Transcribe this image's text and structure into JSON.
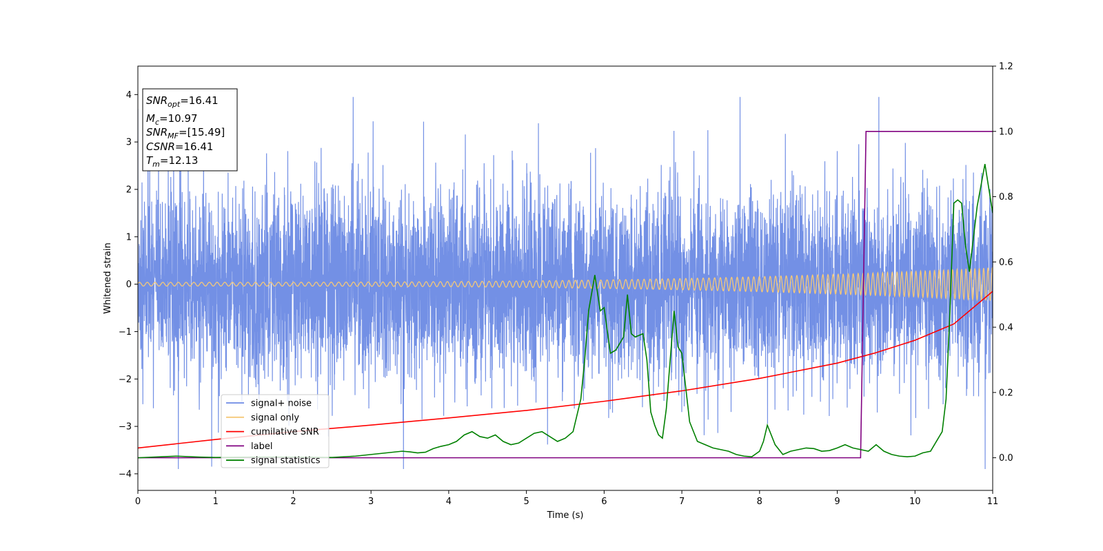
{
  "chart_data": {
    "type": "line",
    "title": "",
    "xlabel": "Time (s)",
    "ylabel": "Whitened strain",
    "xlim": [
      0,
      11
    ],
    "ylim": [
      -4.35,
      4.6
    ],
    "y2lim": [
      -0.1,
      1.2
    ],
    "grid": false,
    "xticks": [
      "0",
      "1",
      "2",
      "3",
      "4",
      "5",
      "6",
      "7",
      "8",
      "9",
      "10",
      "11"
    ],
    "yticks": [
      "−4",
      "−3",
      "−2",
      "−1",
      "0",
      "1",
      "2",
      "3",
      "4"
    ],
    "y2ticks": [
      "0.0",
      "0.2",
      "0.4",
      "0.6",
      "0.8",
      "1.0",
      "1.2"
    ],
    "legend_position": "lower-left",
    "info_box": {
      "snr_opt": {
        "sym": "SNR",
        "sub": "opt",
        "value": "=16.41"
      },
      "mc": {
        "sym": "M",
        "sub": "c",
        "value": "=10.97"
      },
      "snr_mf": {
        "sym": "SNR",
        "sub": "MF",
        "value": "=[15.49]"
      },
      "csnr": {
        "sym": "CSNR",
        "value": "=16.41"
      },
      "tm": {
        "sym": "T",
        "sub": "m",
        "value": "=12.13"
      }
    },
    "series": [
      {
        "name": "signal+ noise",
        "axis": "left",
        "color": "#6c8ae4",
        "kind": "noise",
        "sigma": 1.0,
        "samples": 6000
      },
      {
        "name": "signal only",
        "axis": "left",
        "color": "#f5c878",
        "kind": "chirp",
        "amplitude_start": 0.04,
        "amplitude_end": 0.35
      },
      {
        "name": "cumilative SNR",
        "axis": "right",
        "color": "#ff0000",
        "x": [
          0,
          1,
          2,
          3,
          4,
          5,
          6,
          7,
          8,
          9,
          9.5,
          10,
          10.5,
          11
        ],
        "y": [
          0.03,
          0.056,
          0.08,
          0.1,
          0.122,
          0.145,
          0.173,
          0.205,
          0.243,
          0.29,
          0.322,
          0.36,
          0.41,
          0.51
        ]
      },
      {
        "name": "label",
        "axis": "right",
        "color": "#800080",
        "x": [
          0,
          9.3,
          9.37,
          11
        ],
        "y": [
          0,
          0,
          1,
          1
        ]
      },
      {
        "name": "signal statistics",
        "axis": "right",
        "color": "#008000",
        "x": [
          0,
          0.3,
          0.5,
          0.8,
          1.0,
          1.5,
          2.0,
          2.5,
          2.8,
          3.0,
          3.2,
          3.4,
          3.5,
          3.6,
          3.7,
          3.8,
          3.9,
          4.0,
          4.1,
          4.2,
          4.3,
          4.4,
          4.5,
          4.6,
          4.7,
          4.8,
          4.9,
          5.0,
          5.1,
          5.2,
          5.3,
          5.4,
          5.5,
          5.6,
          5.7,
          5.75,
          5.8,
          5.88,
          5.95,
          6.0,
          6.08,
          6.15,
          6.2,
          6.25,
          6.3,
          6.35,
          6.4,
          6.5,
          6.55,
          6.6,
          6.65,
          6.7,
          6.75,
          6.8,
          6.85,
          6.9,
          6.95,
          7.0,
          7.1,
          7.2,
          7.3,
          7.4,
          7.5,
          7.6,
          7.7,
          7.8,
          7.9,
          8.0,
          8.05,
          8.1,
          8.15,
          8.2,
          8.3,
          8.4,
          8.5,
          8.6,
          8.7,
          8.8,
          8.9,
          9.0,
          9.1,
          9.2,
          9.3,
          9.4,
          9.5,
          9.6,
          9.7,
          9.8,
          9.9,
          10.0,
          10.1,
          10.2,
          10.3,
          10.35,
          10.4,
          10.45,
          10.5,
          10.55,
          10.6,
          10.65,
          10.7,
          10.8,
          10.9,
          11.0
        ],
        "y": [
          0,
          0.003,
          0.005,
          0.002,
          0.001,
          0.002,
          0.002,
          0.001,
          0.005,
          0.01,
          0.015,
          0.02,
          0.018,
          0.015,
          0.017,
          0.028,
          0.035,
          0.04,
          0.05,
          0.07,
          0.08,
          0.065,
          0.06,
          0.07,
          0.05,
          0.04,
          0.045,
          0.06,
          0.075,
          0.08,
          0.065,
          0.05,
          0.06,
          0.08,
          0.18,
          0.3,
          0.45,
          0.56,
          0.45,
          0.46,
          0.32,
          0.33,
          0.35,
          0.37,
          0.5,
          0.38,
          0.37,
          0.38,
          0.3,
          0.14,
          0.1,
          0.07,
          0.06,
          0.15,
          0.3,
          0.45,
          0.34,
          0.32,
          0.11,
          0.05,
          0.04,
          0.03,
          0.025,
          0.02,
          0.01,
          0.005,
          0.003,
          0.02,
          0.05,
          0.1,
          0.07,
          0.04,
          0.01,
          0.02,
          0.025,
          0.03,
          0.028,
          0.02,
          0.022,
          0.03,
          0.04,
          0.03,
          0.025,
          0.02,
          0.04,
          0.02,
          0.01,
          0.005,
          0.003,
          0.005,
          0.015,
          0.02,
          0.06,
          0.08,
          0.18,
          0.45,
          0.78,
          0.79,
          0.78,
          0.65,
          0.57,
          0.77,
          0.9,
          0.75
        ]
      }
    ]
  }
}
